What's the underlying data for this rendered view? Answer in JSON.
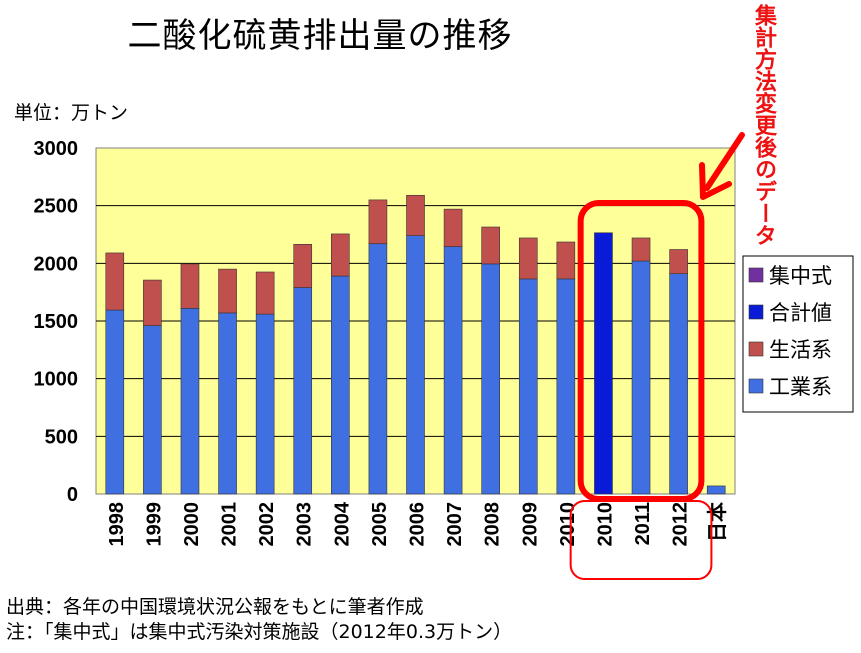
{
  "chart_data": {
    "type": "bar",
    "title": "二酸化硫黄排出量の推移",
    "unit_label": "単位：万トン",
    "ylim": [
      0,
      3000
    ],
    "yticks": [
      "0",
      "500",
      "1000",
      "1500",
      "2000",
      "2500",
      "3000"
    ],
    "grid": true,
    "categories": [
      "1998",
      "1999",
      "2000",
      "2001",
      "2002",
      "2003",
      "2004",
      "2005",
      "2006",
      "2007",
      "2008",
      "2009",
      "2010",
      "2010",
      "2011",
      "2012",
      "日本"
    ],
    "series": [
      {
        "name": "工業系",
        "color": "#3f6fe0",
        "values": [
          1595,
          1460,
          1610,
          1570,
          1560,
          1790,
          1890,
          2170,
          2240,
          2145,
          1995,
          1865,
          1865,
          null,
          2020,
          1910,
          70
        ]
      },
      {
        "name": "生活系",
        "color": "#c0504d",
        "values": [
          495,
          395,
          385,
          380,
          365,
          375,
          365,
          380,
          350,
          325,
          320,
          355,
          320,
          null,
          200,
          210,
          null
        ]
      },
      {
        "name": "合計値",
        "color": "#0a1bd8",
        "values": [
          null,
          null,
          null,
          null,
          null,
          null,
          null,
          null,
          null,
          null,
          null,
          null,
          null,
          2265,
          null,
          null,
          null
        ]
      },
      {
        "name": "集中式",
        "color": "#7030a0",
        "values": [
          null,
          null,
          null,
          null,
          null,
          null,
          null,
          null,
          null,
          null,
          null,
          null,
          null,
          null,
          null,
          null,
          null
        ]
      }
    ],
    "legend": [
      "集中式",
      "合計値",
      "生活系",
      "工業系"
    ],
    "legend_position": "right",
    "annotation": "集計方法変更後のデータ",
    "highlight_categories": [
      13,
      14,
      15
    ],
    "plot_bg": "#ffff99",
    "highlight_color": "#ff0000"
  },
  "footer": {
    "source": "出典：各年の中国環境状況公報をもとに筆者作成",
    "note": "注：「集中式」は集中式汚染対策施設（2012年0.3万トン）"
  }
}
